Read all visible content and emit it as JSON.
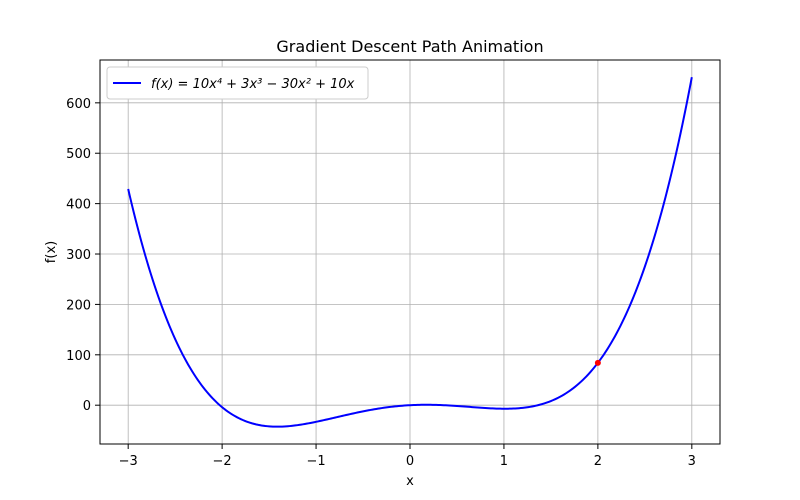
{
  "chart_data": {
    "type": "line",
    "title": "Gradient Descent Path Animation",
    "xlabel": "x",
    "ylabel": "f(x)",
    "xlim": [
      -3.3,
      3.3
    ],
    "ylim": [
      -77,
      685
    ],
    "xticks": [
      -3,
      -2,
      -1,
      0,
      1,
      2,
      3
    ],
    "xtick_labels": [
      "−3",
      "−2",
      "−1",
      "0",
      "1",
      "2",
      "3"
    ],
    "yticks": [
      0,
      100,
      200,
      300,
      400,
      500,
      600
    ],
    "ytick_labels": [
      "0",
      "100",
      "200",
      "300",
      "400",
      "500",
      "600"
    ],
    "grid": true,
    "legend_position": "top-left",
    "series": [
      {
        "name": "f(x) = 10x⁴ + 3x³ − 30x² + 10x",
        "color": "#0000ff",
        "function_coefficients": {
          "x4": 10,
          "x3": 3,
          "x2": -30,
          "x1": 10,
          "x0": 0
        },
        "x_range": [
          -3,
          3
        ]
      }
    ],
    "current_point": {
      "x": 2,
      "y": 84,
      "color": "#ff0000"
    }
  }
}
